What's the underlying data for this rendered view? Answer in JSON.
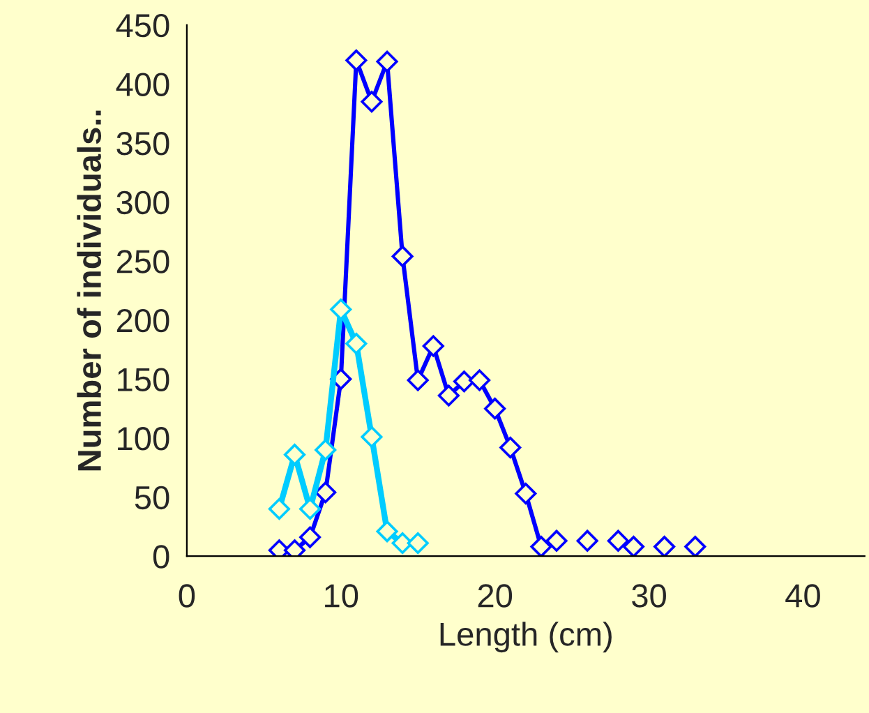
{
  "chart_data": {
    "type": "line",
    "xlabel": "Length (cm)",
    "ylabel": "Number of individuals..",
    "xlim": [
      0,
      44
    ],
    "xticks": [
      0,
      10,
      20,
      30,
      40
    ],
    "ylim": [
      0,
      450
    ],
    "yticks": [
      0,
      50,
      100,
      150,
      200,
      250,
      300,
      350,
      400,
      450
    ],
    "grid": false,
    "marker": "diamond",
    "line_style": "solid",
    "series": [
      {
        "color": "#0000ff",
        "x": [
          6,
          7,
          8,
          9,
          10,
          11,
          12,
          13,
          14,
          15,
          16,
          17,
          18,
          19,
          20,
          21,
          22,
          23
        ],
        "values": [
          5,
          5,
          16,
          54,
          150,
          420,
          385,
          419,
          254,
          149,
          178,
          136,
          148,
          149,
          125,
          92,
          53,
          8
        ]
      },
      {
        "type": "scatter",
        "color": "#0000ff",
        "x": [
          24,
          26,
          28,
          29,
          31,
          33
        ],
        "values": [
          13,
          13,
          13,
          8,
          8,
          8
        ]
      },
      {
        "color": "#00ccff",
        "x": [
          6,
          7,
          8,
          9,
          10,
          11,
          12,
          13,
          14,
          15
        ],
        "values": [
          40,
          86,
          40,
          90,
          209,
          180,
          101,
          21,
          11,
          11
        ]
      }
    ]
  }
}
